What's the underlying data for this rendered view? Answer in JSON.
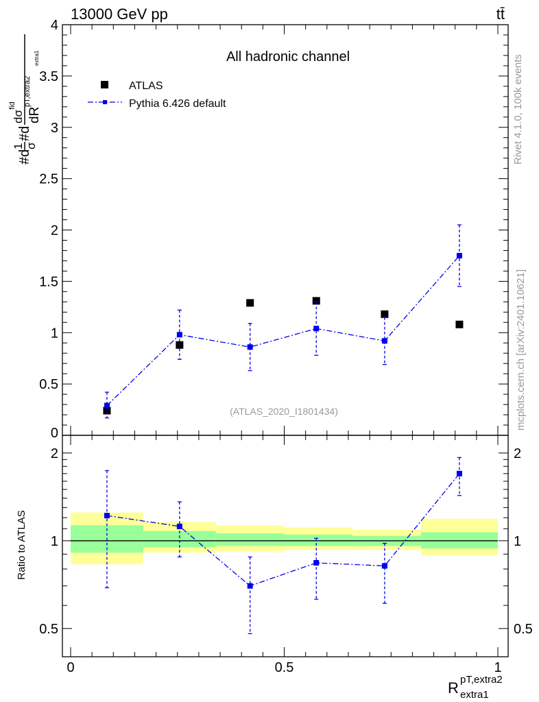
{
  "header": {
    "energy_label": "13000 GeV pp",
    "process_label": "tt̄"
  },
  "side_text": {
    "rivet": "Rivet 4.1.0,  100k events",
    "mcplots": "mcplots.cern.ch [arXiv:2401.10621]"
  },
  "colors": {
    "data": "#000000",
    "mc": "#0000ee",
    "band_inner": "#99ff99",
    "band_outer": "#ffff99"
  },
  "chart_data": [
    {
      "type": "scatter",
      "title": "All hadronic channel",
      "watermark": "(ATLAS_2020_I1801434)",
      "ylabel": "#d1/σ#dσfid/dR pT,extra2 extra1",
      "ylabel_parts": {
        "prefix": "#d",
        "one": "1",
        "sigma": "σ",
        "mid": "#d",
        "dsigma": "dσ",
        "fid": "fid",
        "dR": "dR",
        "pT_extra2": "pT,extra2",
        "extra1": "extra1"
      },
      "ylim": [
        0,
        4
      ],
      "yticks": [
        0.5,
        1,
        1.5,
        2,
        2.5,
        3,
        3.5,
        4
      ],
      "ytick_labels": [
        "0.5",
        "1",
        "1.5",
        "2",
        "2.5",
        "3",
        "3.5",
        "4"
      ],
      "ytick_zero_label": "0",
      "xlim": [
        0,
        1
      ],
      "legend": {
        "placement": "top-left",
        "entries": [
          "ATLAS",
          "Pythia 6.426 default"
        ]
      },
      "series": [
        {
          "name": "ATLAS",
          "style": "marker",
          "x": [
            0.085,
            0.255,
            0.42,
            0.575,
            0.735,
            0.91
          ],
          "y": [
            0.24,
            0.88,
            1.29,
            1.31,
            1.18,
            1.08
          ]
        },
        {
          "name": "Pythia 6.426 default",
          "style": "dashdot-line-with-errors",
          "x": [
            0.085,
            0.255,
            0.42,
            0.575,
            0.735,
            0.91
          ],
          "y": [
            0.29,
            0.98,
            0.86,
            1.04,
            0.92,
            1.75
          ],
          "yerr_low": [
            0.12,
            0.24,
            0.23,
            0.26,
            0.23,
            0.3
          ],
          "yerr_high": [
            0.13,
            0.24,
            0.23,
            0.26,
            0.23,
            0.3
          ]
        }
      ]
    },
    {
      "type": "scatter",
      "title": "",
      "ylabel": "Ratio to ATLAS",
      "xlabel": "R pT,extra2 extra1",
      "xlabel_parts": {
        "R": "R",
        "sup": "pT,extra2",
        "sub": "extra1"
      },
      "ylim": [
        0.4,
        2.3
      ],
      "yscale": "log",
      "yticks": [
        0.5,
        1,
        2
      ],
      "ytick_labels": [
        "0.5",
        "1",
        "2"
      ],
      "xlim": [
        0,
        1
      ],
      "xticks": [
        0,
        0.5,
        1
      ],
      "xtick_labels": [
        "0",
        "0.5",
        "1"
      ],
      "reference_line": 1,
      "bands": [
        {
          "x0": 0.0,
          "x1": 0.17,
          "inner_low": 0.91,
          "inner_high": 1.13,
          "outer_low": 0.83,
          "outer_high": 1.25
        },
        {
          "x0": 0.17,
          "x1": 0.34,
          "inner_low": 0.95,
          "inner_high": 1.08,
          "outer_low": 0.91,
          "outer_high": 1.16
        },
        {
          "x0": 0.34,
          "x1": 0.5,
          "inner_low": 0.96,
          "inner_high": 1.06,
          "outer_low": 0.92,
          "outer_high": 1.13
        },
        {
          "x0": 0.5,
          "x1": 0.66,
          "inner_low": 0.96,
          "inner_high": 1.05,
          "outer_low": 0.93,
          "outer_high": 1.11
        },
        {
          "x0": 0.66,
          "x1": 0.82,
          "inner_low": 0.96,
          "inner_high": 1.04,
          "outer_low": 0.93,
          "outer_high": 1.09
        },
        {
          "x0": 0.82,
          "x1": 1.0,
          "inner_low": 0.94,
          "inner_high": 1.07,
          "outer_low": 0.89,
          "outer_high": 1.19
        }
      ],
      "series": [
        {
          "name": "Pythia 6.426 default",
          "x": [
            0.085,
            0.255,
            0.42,
            0.575,
            0.735,
            0.91
          ],
          "y": [
            1.22,
            1.12,
            0.7,
            0.84,
            0.82,
            1.7
          ],
          "yerr_low": [
            0.53,
            0.24,
            0.22,
            0.21,
            0.21,
            0.27
          ],
          "yerr_high": [
            0.52,
            0.24,
            0.18,
            0.18,
            0.16,
            0.23
          ]
        }
      ]
    }
  ]
}
